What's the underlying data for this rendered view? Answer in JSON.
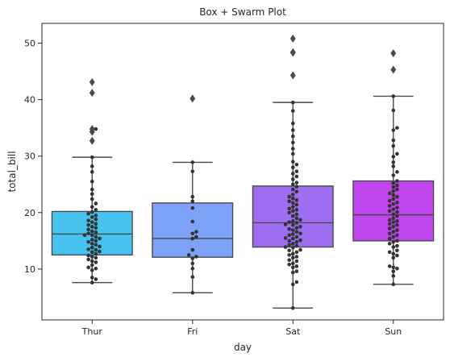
{
  "chart_data": {
    "type": "box",
    "title": "Box + Swarm Plot",
    "xlabel": "day",
    "ylabel": "total_bill",
    "ylim": [
      1.0,
      53.5
    ],
    "yticks": [
      10,
      20,
      30,
      40,
      50
    ],
    "grid": false,
    "categories": [
      "Thur",
      "Fri",
      "Sat",
      "Sun"
    ],
    "colors": [
      "#45c2ee",
      "#7da2f7",
      "#9d6ff0",
      "#bf45ee"
    ],
    "boxes": [
      {
        "category": "Thur",
        "whisker_low": 7.6,
        "q1": 12.5,
        "median": 16.2,
        "q3": 20.2,
        "whisker_high": 29.8,
        "outliers": [
          32.7,
          34.3,
          34.8,
          41.2,
          43.1
        ]
      },
      {
        "category": "Fri",
        "whisker_low": 5.8,
        "q1": 12.1,
        "median": 15.4,
        "q3": 21.7,
        "whisker_high": 28.9,
        "outliers": [
          40.2
        ]
      },
      {
        "category": "Sat",
        "whisker_low": 3.1,
        "q1": 13.9,
        "median": 18.2,
        "q3": 24.7,
        "whisker_high": 39.5,
        "outliers": [
          44.3,
          48.3,
          48.4,
          50.8
        ]
      },
      {
        "category": "Sun",
        "whisker_low": 7.3,
        "q1": 15.0,
        "median": 19.6,
        "q3": 25.6,
        "whisker_high": 40.6,
        "outliers": [
          45.3,
          48.2
        ]
      }
    ],
    "swarm_points": [
      {
        "category": "Thur",
        "values": [
          7.6,
          8.2,
          8.5,
          9.8,
          10.1,
          10.3,
          10.7,
          11.2,
          11.4,
          11.7,
          12.0,
          12.2,
          12.4,
          12.7,
          13.0,
          13.1,
          13.4,
          13.5,
          13.8,
          14.0,
          14.3,
          14.5,
          14.8,
          15.0,
          15.2,
          15.4,
          15.7,
          16.0,
          16.0,
          16.3,
          16.5,
          16.7,
          17.0,
          17.3,
          17.5,
          17.8,
          18.0,
          18.3,
          18.6,
          18.8,
          19.2,
          19.5,
          19.8,
          20.1,
          20.5,
          21.0,
          21.6,
          22.4,
          23.3,
          24.1,
          25.5,
          27.2,
          28.2,
          29.8,
          32.7,
          34.3,
          34.8
        ]
      },
      {
        "category": "Fri",
        "values": [
          5.8,
          8.6,
          10.1,
          11.0,
          11.9,
          12.2,
          12.5,
          13.4,
          15.4,
          15.7,
          16.3,
          16.6,
          18.4,
          20.8,
          22.0,
          22.8,
          27.3,
          28.9
        ]
      },
      {
        "category": "Sat",
        "values": [
          3.1,
          7.3,
          7.7,
          9.4,
          9.6,
          10.3,
          10.5,
          10.8,
          11.0,
          11.4,
          11.6,
          12.0,
          12.2,
          12.5,
          12.7,
          13.0,
          13.3,
          13.4,
          13.8,
          13.9,
          14.1,
          14.3,
          14.5,
          14.8,
          15.0,
          15.1,
          15.4,
          15.5,
          15.7,
          16.0,
          16.2,
          16.3,
          16.6,
          16.9,
          17.1,
          17.3,
          17.5,
          17.8,
          17.9,
          18.2,
          18.3,
          18.5,
          18.7,
          19.0,
          19.4,
          19.7,
          20.0,
          20.3,
          20.5,
          20.7,
          21.0,
          21.4,
          21.7,
          22.0,
          22.2,
          22.5,
          22.8,
          23.2,
          23.7,
          24.1,
          24.6,
          25.0,
          25.3,
          25.9,
          26.4,
          26.9,
          27.3,
          28.0,
          28.5,
          29.0,
          30.4,
          31.3,
          32.4,
          33.5,
          34.6,
          35.8,
          38.0,
          39.5
        ]
      },
      {
        "category": "Sun",
        "values": [
          7.3,
          8.8,
          9.6,
          10.1,
          10.3,
          10.5,
          12.0,
          12.4,
          12.7,
          13.0,
          13.3,
          13.9,
          14.1,
          14.5,
          14.8,
          15.0,
          15.4,
          15.7,
          16.0,
          16.3,
          16.6,
          16.9,
          17.2,
          17.5,
          17.8,
          18.0,
          18.3,
          18.5,
          18.7,
          19.0,
          19.4,
          19.7,
          20.1,
          20.3,
          20.6,
          20.9,
          21.2,
          21.5,
          21.8,
          22.1,
          22.4,
          22.8,
          23.1,
          23.4,
          23.8,
          24.1,
          24.5,
          24.8,
          25.2,
          25.6,
          26.6,
          27.2,
          28.2,
          28.9,
          29.9,
          30.4,
          31.8,
          32.8,
          34.6,
          35.0,
          38.1,
          40.6
        ]
      }
    ]
  }
}
